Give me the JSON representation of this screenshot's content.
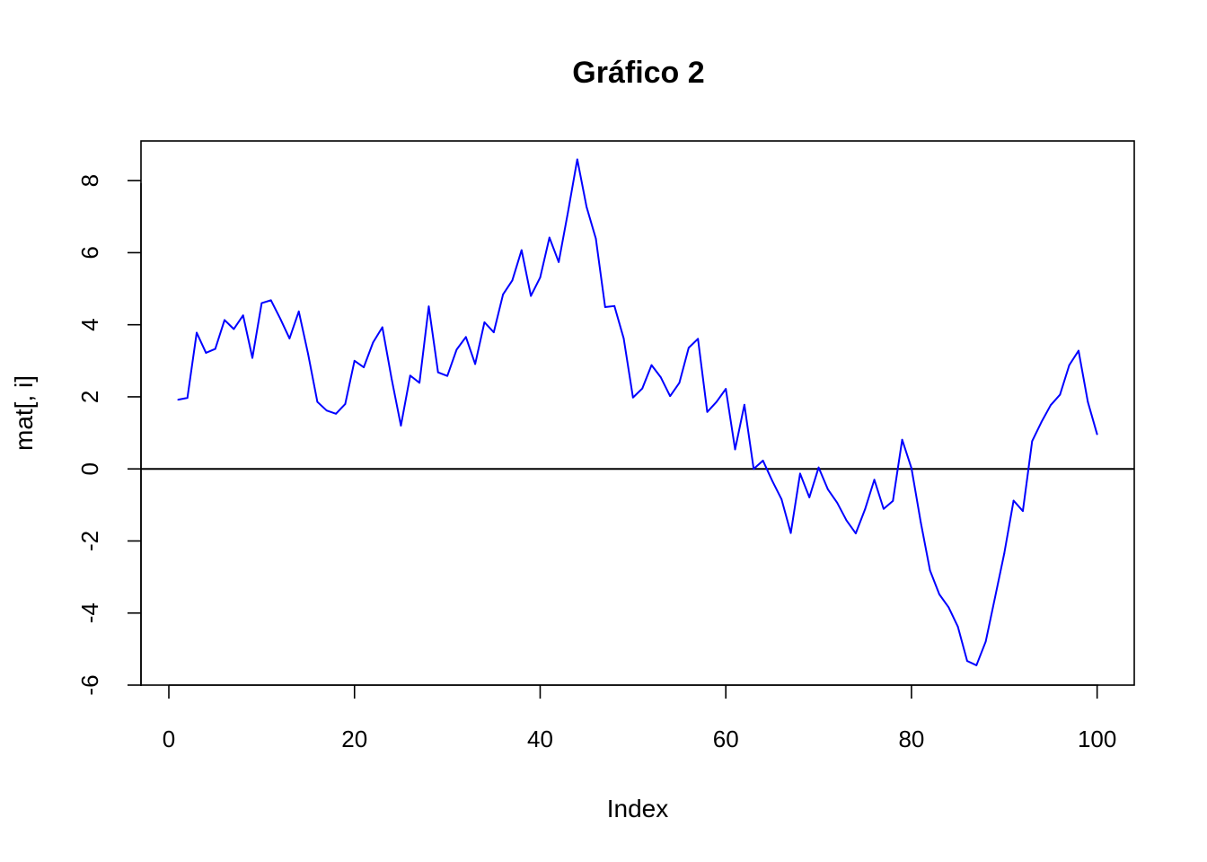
{
  "chart_data": {
    "type": "line",
    "title": "Gráfico 2",
    "xlabel": "Index",
    "ylabel": "mat[, i]",
    "xlim": [
      -3,
      104
    ],
    "ylim": [
      -6,
      9.1
    ],
    "x_ticks": [
      0,
      20,
      40,
      60,
      80,
      100
    ],
    "x_tick_labels": [
      "0",
      "20",
      "40",
      "60",
      "80",
      "100"
    ],
    "y_ticks": [
      -6,
      -4,
      -2,
      0,
      2,
      4,
      6,
      8
    ],
    "y_tick_labels": [
      "-6",
      "-4",
      "-2",
      "0",
      "2",
      "4",
      "6",
      "8"
    ],
    "reference_line_y": 0,
    "grid": false,
    "legend": "none",
    "colors": {
      "series": "#0000ff",
      "reference": "#000000",
      "axes": "#000000"
    },
    "series": [
      {
        "x": [
          1,
          2,
          3,
          4,
          5,
          6,
          7,
          8,
          9,
          10,
          11,
          12,
          13,
          14,
          15,
          16,
          17,
          18,
          19,
          20,
          21,
          22,
          23,
          24,
          25,
          26,
          27,
          28,
          29,
          30,
          31,
          32,
          33,
          34,
          35,
          36,
          37,
          38,
          39,
          40,
          41,
          42,
          43,
          44,
          45,
          46,
          47,
          48,
          49,
          50,
          51,
          52,
          53,
          54,
          55,
          56,
          57,
          58,
          59,
          60,
          61,
          62,
          63,
          64,
          65,
          66,
          67,
          68,
          69,
          70,
          71,
          72,
          73,
          74,
          75,
          76,
          77,
          78,
          79,
          80,
          81,
          82,
          83,
          84,
          85,
          86,
          87,
          88,
          89,
          90,
          91,
          92,
          93,
          94,
          95,
          96,
          97,
          98,
          99,
          100
        ],
        "values": [
          1.92,
          1.97,
          3.78,
          3.22,
          3.33,
          4.13,
          3.88,
          4.26,
          3.08,
          4.6,
          4.68,
          4.17,
          3.62,
          4.37,
          3.19,
          1.86,
          1.62,
          1.53,
          1.8,
          3.0,
          2.82,
          3.51,
          3.93,
          2.5,
          1.2,
          2.59,
          2.39,
          4.51,
          2.68,
          2.58,
          3.31,
          3.66,
          2.91,
          4.07,
          3.79,
          4.84,
          5.23,
          6.07,
          4.8,
          5.31,
          6.42,
          5.74,
          7.13,
          8.59,
          7.27,
          6.39,
          4.49,
          4.52,
          3.62,
          1.98,
          2.23,
          2.88,
          2.54,
          2.02,
          2.39,
          3.36,
          3.61,
          1.58,
          1.86,
          2.22,
          0.54,
          1.78,
          0.0,
          0.23,
          -0.33,
          -0.84,
          -1.78,
          -0.13,
          -0.79,
          0.04,
          -0.57,
          -0.94,
          -1.43,
          -1.79,
          -1.12,
          -0.3,
          -1.11,
          -0.89,
          0.81,
          0.02,
          -1.48,
          -2.82,
          -3.48,
          -3.84,
          -4.38,
          -5.33,
          -5.45,
          -4.79,
          -3.57,
          -2.34,
          -0.88,
          -1.17,
          0.77,
          1.3,
          1.77,
          2.06,
          2.88,
          3.28,
          1.86,
          0.96
        ]
      }
    ]
  }
}
